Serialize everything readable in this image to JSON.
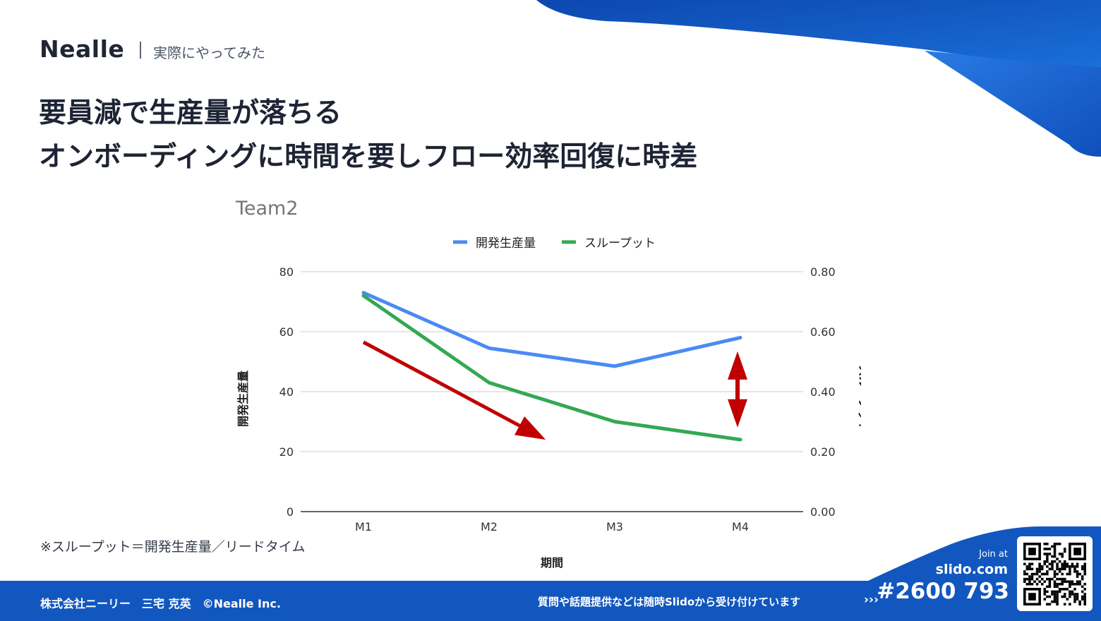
{
  "brand": {
    "logo_text": "Nealle",
    "tagline": "実際にやってみた"
  },
  "headline": {
    "line1": "要員減で生産量が落ちる",
    "line2": "オンボーディングに時間を要しフロー効率回復に時差"
  },
  "chart_data": {
    "type": "line",
    "title": "Team2",
    "categories": [
      "M1",
      "M2",
      "M3",
      "M4"
    ],
    "xlabel": "期間",
    "ylabel": "開発生産量",
    "y2label": "スループット",
    "ylim": [
      0,
      80
    ],
    "y2lim": [
      0,
      0.8
    ],
    "yticks": [
      "0",
      "20",
      "40",
      "60",
      "80"
    ],
    "y2ticks": [
      "0.00",
      "0.20",
      "0.40",
      "0.60",
      "0.80"
    ],
    "legend_position": "top",
    "grid": true,
    "series": [
      {
        "name": "開発生産量",
        "axis": "left",
        "color": "#4a8af4",
        "values": [
          73,
          54.5,
          48.5,
          58
        ]
      },
      {
        "name": "スループット",
        "axis": "right",
        "color": "#34a853",
        "values": [
          0.72,
          0.43,
          0.3,
          0.24
        ]
      }
    ],
    "annotations": [
      {
        "type": "arrow",
        "color": "#c00000",
        "description": "down-trend",
        "from": {
          "x": 0,
          "y": 56.5
        },
        "to": {
          "x": 1.45,
          "y": 24
        }
      },
      {
        "type": "double-arrow",
        "color": "#c00000",
        "description": "gap",
        "x": 3,
        "y_from": 52.5,
        "y_to": 29
      }
    ]
  },
  "footnote": "※スループット＝開発生産量／リードタイム",
  "footer": {
    "left": "株式会社ニーリー　三宅 克英　©Nealle Inc.",
    "middle": "質問や話題提供などは随時Slidoから受け付けています",
    "chevrons": "›››"
  },
  "slido": {
    "join_label": "Join at",
    "url": "slido.com",
    "code": "#2600 793"
  },
  "colors": {
    "accent_blue": "#1257bf",
    "text_dark": "#1e2434",
    "arrow_red": "#c00000"
  }
}
